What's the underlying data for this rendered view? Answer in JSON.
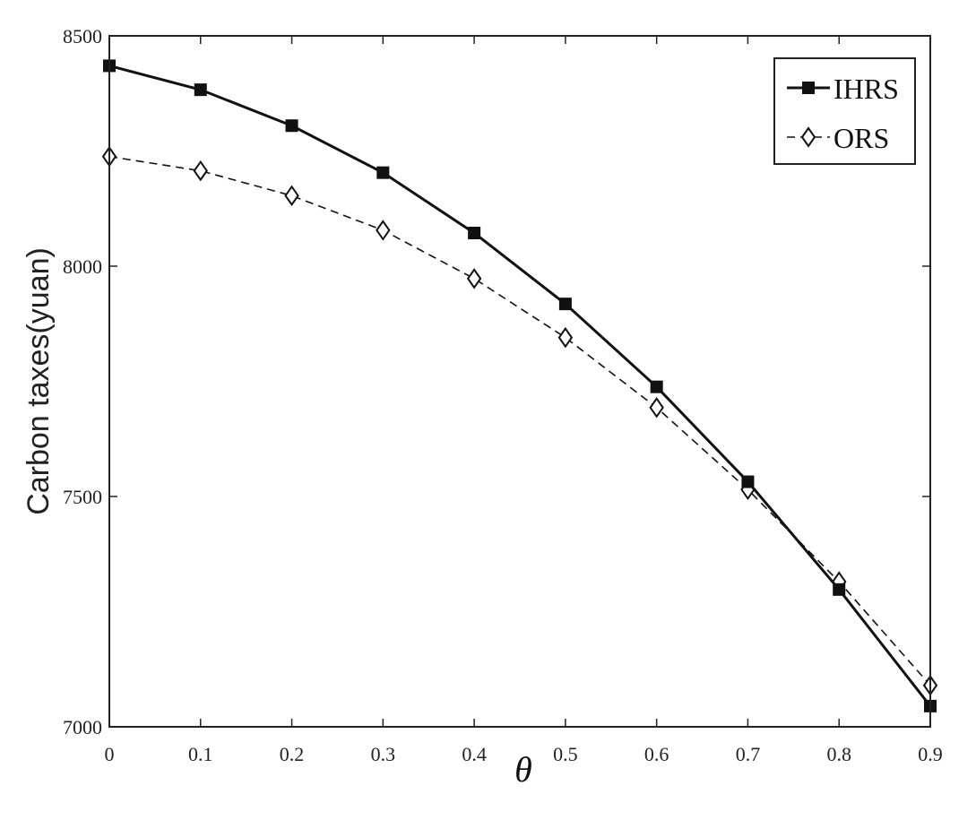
{
  "chart_data": {
    "type": "line",
    "title": "",
    "xlabel": "θ",
    "ylabel": "Carbon taxes(yuan)",
    "xlim": [
      0,
      0.9
    ],
    "ylim": [
      7000,
      8500
    ],
    "x": [
      0,
      0.1,
      0.2,
      0.3,
      0.4,
      0.5,
      0.6,
      0.7,
      0.8,
      0.9
    ],
    "x_tick_labels": [
      "0",
      "0.1",
      "0.2",
      "0.3",
      "0.4",
      "0.5",
      "0.6",
      "0.7",
      "0.8",
      "0.9"
    ],
    "y_ticks": [
      7000,
      7500,
      8000,
      8500
    ],
    "y_tick_labels": [
      "7000",
      "7500",
      "8000",
      "8500"
    ],
    "grid": false,
    "legend_position": "top-right",
    "series": [
      {
        "name": "IHRS",
        "values": [
          8435,
          8383,
          8305,
          8203,
          8072,
          7918,
          7738,
          7532,
          7298,
          7045
        ],
        "color": "#111111",
        "line_style": "solid",
        "marker": "filled-square"
      },
      {
        "name": "ORS",
        "values": [
          8238,
          8207,
          8153,
          8078,
          7973,
          7845,
          7693,
          7515,
          7315,
          7090
        ],
        "color": "#111111",
        "line_style": "dashed",
        "marker": "open-diamond"
      }
    ]
  }
}
